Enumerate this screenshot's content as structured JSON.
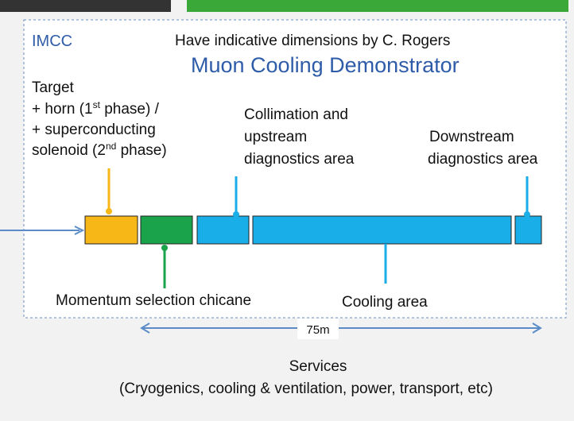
{
  "header": {
    "group": "IMCC",
    "note": "Have indicative dimensions by C. Rogers",
    "title": "Muon Cooling Demonstrator"
  },
  "labels": {
    "target": {
      "line1": "Target",
      "line2": [
        "+ horn (1",
        "st",
        " phase) /"
      ],
      "line3": "+ superconducting",
      "line4": [
        "solenoid (2",
        "nd",
        " phase)"
      ]
    },
    "collimation": [
      "Collimation and",
      "upstream",
      "diagnostics area"
    ],
    "downstream": [
      "Downstream",
      "diagnostics area"
    ],
    "chicane": "Momentum selection chicane",
    "cooling": "Cooling area"
  },
  "dimension": "75m",
  "services": {
    "title": "Services",
    "detail": "(Cryogenics, cooling & ventilation, power, transport, etc)"
  }
}
